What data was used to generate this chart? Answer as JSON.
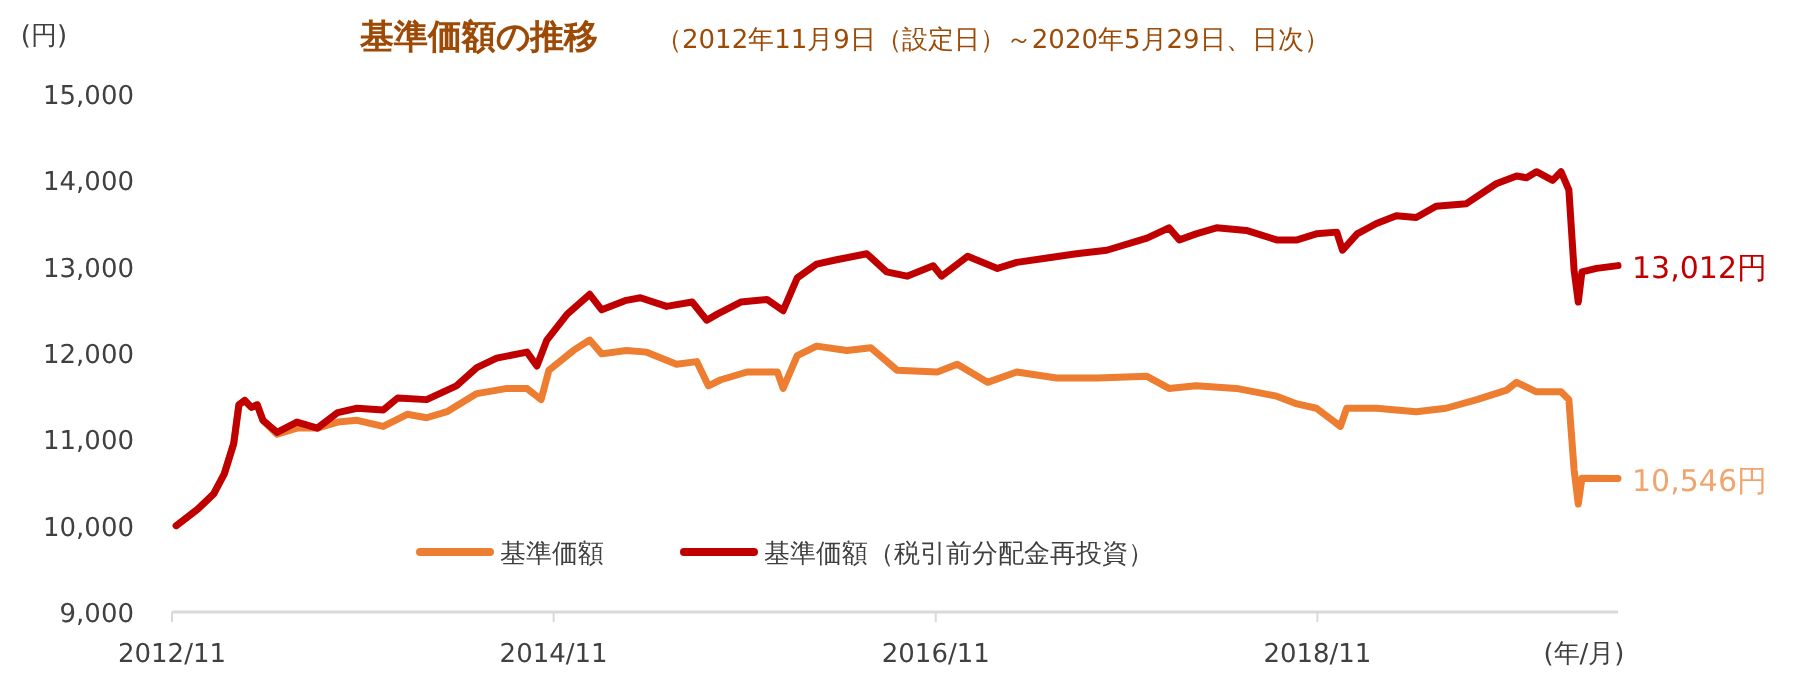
{
  "chart_data": {
    "type": "line",
    "title": "基準価額の推移",
    "subtitle": "（2012年11月9日（設定日）～2020年5月29日、日次）",
    "ylabel": "(円)",
    "xlabel": "(年/月)",
    "xlim": [
      "2012-11-01",
      "2020-05-29"
    ],
    "xticks": [
      {
        "value": "2012-11",
        "label": "2012/11"
      },
      {
        "value": "2014-11",
        "label": "2014/11"
      },
      {
        "value": "2016-11",
        "label": "2016/11"
      },
      {
        "value": "2018-11",
        "label": "2018/11"
      }
    ],
    "ylim": [
      9000,
      15000
    ],
    "yticks": [
      {
        "value": 9000,
        "label": "9,000"
      },
      {
        "value": 10000,
        "label": "10,000"
      },
      {
        "value": 11000,
        "label": "11,000"
      },
      {
        "value": 12000,
        "label": "12,000"
      },
      {
        "value": 13000,
        "label": "13,000"
      },
      {
        "value": 14000,
        "label": "14,000"
      },
      {
        "value": 15000,
        "label": "15,000"
      }
    ],
    "legend": "bottom",
    "grid": false,
    "marker": "none",
    "line_style": "solid",
    "series": [
      {
        "name": "基準価額",
        "color": "#ed7d31",
        "x": [
          "2012-11-09",
          "2012-12-20",
          "2013-01-20",
          "2013-02-09",
          "2013-02-27",
          "2013-03-09",
          "2013-03-20",
          "2013-04-02",
          "2013-04-13",
          "2013-04-24",
          "2013-05-21",
          "2013-06-28",
          "2013-08-06",
          "2013-09-14",
          "2013-10-21",
          "2013-12-10",
          "2014-01-25",
          "2014-03-03",
          "2014-04-11",
          "2014-06-07",
          "2014-08-04",
          "2014-09-11",
          "2014-10-08",
          "2014-10-23",
          "2014-12-09",
          "2015-01-09",
          "2015-02-01",
          "2015-03-20",
          "2015-04-28",
          "2015-06-24",
          "2015-08-02",
          "2015-08-24",
          "2015-09-17",
          "2015-11-06",
          "2016-01-03",
          "2016-01-14",
          "2016-02-10",
          "2016-03-18",
          "2016-05-15",
          "2016-06-30",
          "2016-08-19",
          "2016-11-04",
          "2016-12-12",
          "2017-02-08",
          "2017-04-05",
          "2017-06-20",
          "2017-09-06",
          "2017-12-10",
          "2018-01-21",
          "2018-03-14",
          "2018-05-30",
          "2018-08-15",
          "2018-09-23",
          "2018-10-30",
          "2018-12-15",
          "2018-12-27",
          "2019-02-22",
          "2019-05-09",
          "2019-07-05",
          "2019-09-02",
          "2019-10-29",
          "2019-11-17",
          "2019-12-25",
          "2020-02-10",
          "2020-02-25",
          "2020-03-06",
          "2020-03-14",
          "2020-03-21",
          "2020-05-29"
        ],
        "values": [
          10000,
          10190,
          10370,
          10600,
          10950,
          11400,
          11450,
          11370,
          11400,
          11220,
          11060,
          11130,
          11130,
          11200,
          11220,
          11150,
          11290,
          11250,
          11320,
          11530,
          11590,
          11590,
          11460,
          11800,
          12030,
          12150,
          11990,
          12030,
          12010,
          11870,
          11900,
          11620,
          11690,
          11780,
          11780,
          11590,
          11970,
          12080,
          12030,
          12060,
          11800,
          11780,
          11870,
          11660,
          11780,
          11710,
          11710,
          11730,
          11590,
          11620,
          11590,
          11500,
          11410,
          11360,
          11150,
          11360,
          11360,
          11320,
          11360,
          11460,
          11570,
          11660,
          11550,
          11550,
          11460,
          10650,
          10250,
          10550,
          10546
        ]
      },
      {
        "name": "基準価額（税引前分配金再投資）",
        "color": "#c00000",
        "x": [
          "2012-11-09",
          "2012-12-20",
          "2013-01-20",
          "2013-02-09",
          "2013-02-27",
          "2013-03-09",
          "2013-03-20",
          "2013-04-02",
          "2013-04-13",
          "2013-04-24",
          "2013-05-21",
          "2013-06-28",
          "2013-08-06",
          "2013-09-14",
          "2013-10-21",
          "2013-12-10",
          "2014-01-07",
          "2014-03-03",
          "2014-04-29",
          "2014-06-07",
          "2014-07-15",
          "2014-09-11",
          "2014-09-30",
          "2014-10-19",
          "2014-11-27",
          "2015-01-09",
          "2015-02-01",
          "2015-03-20",
          "2015-04-16",
          "2015-06-05",
          "2015-07-24",
          "2015-08-21",
          "2015-09-10",
          "2015-10-25",
          "2015-12-14",
          "2016-01-14",
          "2016-02-10",
          "2016-03-18",
          "2016-04-25",
          "2016-06-22",
          "2016-07-30",
          "2016-09-07",
          "2016-10-27",
          "2016-11-12",
          "2017-01-01",
          "2017-02-27",
          "2017-04-05",
          "2017-06-02",
          "2017-07-28",
          "2017-09-24",
          "2017-12-10",
          "2018-01-21",
          "2018-02-10",
          "2018-03-14",
          "2018-04-22",
          "2018-06-18",
          "2018-08-15",
          "2018-09-23",
          "2018-10-30",
          "2018-12-08",
          "2018-12-19",
          "2019-01-16",
          "2019-02-22",
          "2019-04-01",
          "2019-05-09",
          "2019-06-16",
          "2019-08-13",
          "2019-10-09",
          "2019-11-17",
          "2019-12-06",
          "2019-12-25",
          "2020-01-25",
          "2020-02-10",
          "2020-02-25",
          "2020-03-06",
          "2020-03-14",
          "2020-03-21",
          "2020-04-18",
          "2020-05-29"
        ],
        "values": [
          10000,
          10190,
          10370,
          10600,
          10950,
          11400,
          11450,
          11370,
          11400,
          11220,
          11080,
          11200,
          11130,
          11310,
          11360,
          11340,
          11480,
          11460,
          11620,
          11830,
          11940,
          12010,
          11850,
          12150,
          12450,
          12680,
          12500,
          12610,
          12640,
          12540,
          12590,
          12380,
          12450,
          12590,
          12620,
          12490,
          12870,
          13030,
          13080,
          13150,
          12940,
          12890,
          13010,
          12890,
          13120,
          12980,
          13050,
          13100,
          13150,
          13190,
          13330,
          13450,
          13310,
          13380,
          13450,
          13420,
          13310,
          13310,
          13380,
          13400,
          13190,
          13380,
          13500,
          13590,
          13570,
          13700,
          13730,
          13960,
          14050,
          14030,
          14100,
          14000,
          14100,
          13890,
          12960,
          12590,
          12940,
          12980,
          13012
        ]
      }
    ],
    "annotations": [
      {
        "text": "10,546円",
        "x": "2020-05-29",
        "y": 10546
      },
      {
        "text": "13,012円",
        "x": "2020-05-29",
        "y": 13012
      }
    ]
  }
}
